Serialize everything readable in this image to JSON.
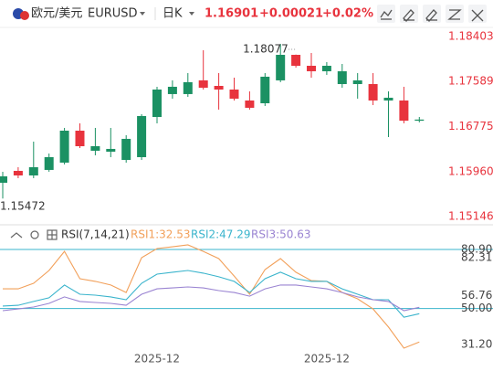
{
  "header": {
    "pair": "欧元/美元",
    "symbol": "EURUSD",
    "period": "日K",
    "price": "1.16901",
    "change": "+0.00021",
    "percent": "+0.02%"
  },
  "chart_data": [
    {
      "type": "candlestick",
      "open": [
        1.15758,
        1.15973,
        1.1589,
        1.1599,
        1.16122,
        1.167,
        1.16337,
        1.1632,
        1.16171,
        1.16221,
        1.16948,
        1.17362,
        1.17362,
        1.1761,
        1.1751,
        1.17444,
        1.17246,
        1.17196,
        1.1761,
        1.18072,
        1.17874,
        1.17775,
        1.17543,
        1.17543,
        1.17543,
        1.17246,
        1.17246,
        1.1688
      ],
      "high": [
        1.15957,
        1.16039,
        1.16502,
        1.16287,
        1.1675,
        1.16833,
        1.1675,
        1.1675,
        1.16618,
        1.16998,
        1.17494,
        1.1761,
        1.17742,
        1.18155,
        1.17742,
        1.17659,
        1.17411,
        1.17742,
        1.18271,
        1.18077,
        1.18105,
        1.1794,
        1.17907,
        1.17742,
        1.17742,
        1.17411,
        1.17494,
        1.16948
      ],
      "low": [
        1.15472,
        1.15841,
        1.15841,
        1.15957,
        1.16089,
        1.16386,
        1.16254,
        1.16221,
        1.16122,
        1.16171,
        1.16833,
        1.17279,
        1.17312,
        1.17444,
        1.17081,
        1.17246,
        1.17081,
        1.17147,
        1.17577,
        1.17841,
        1.17659,
        1.17709,
        1.17477,
        1.17279,
        1.17163,
        1.16585,
        1.16833,
        1.1685
      ],
      "close": [
        1.15874,
        1.1589,
        1.16039,
        1.16221,
        1.167,
        1.16419,
        1.16419,
        1.1637,
        1.16552,
        1.16965,
        1.17444,
        1.17494,
        1.17577,
        1.17477,
        1.17444,
        1.17279,
        1.17114,
        1.17676,
        1.18072,
        1.17874,
        1.17775,
        1.17874,
        1.17775,
        1.1761,
        1.17246,
        1.17296,
        1.1688,
        1.16901
      ],
      "up_color": "#1b9163",
      "down_color": "#e8333d",
      "ylim": [
        1.15014,
        1.18568
      ],
      "yticks": [
        1.18403,
        1.17589,
        1.16775,
        {
          "value": 1.1596,
          "label": "1.15960"
        },
        1.15146
      ]
    },
    {
      "type": "line",
      "title": "RSI(7,14,21)",
      "categories": [
        null,
        null,
        null,
        null,
        null,
        null,
        null,
        null,
        null,
        null,
        "2025-12",
        null,
        null,
        null,
        null,
        null,
        null,
        null,
        null,
        null,
        null,
        "2025-12",
        null,
        null,
        null,
        null,
        null,
        null
      ],
      "series": [
        {
          "name": "RSI1:32.53",
          "color": "#f2a05a",
          "values": [
            60.3,
            60.3,
            63.2,
            69.9,
            79.9,
            65.6,
            64.2,
            62.3,
            58.4,
            76.6,
            81.4,
            82.3,
            83.3,
            79.9,
            76.1,
            67.0,
            57.5,
            70.4,
            76.1,
            69.0,
            64.6,
            64.2,
            58.4,
            55.1,
            49.8,
            40.3,
            29.3,
            32.53
          ]
        },
        {
          "name": "RSI2:47.29",
          "color": "#3ab4cc",
          "values": [
            51.3,
            51.7,
            53.7,
            55.6,
            62.3,
            57.5,
            57.0,
            56.1,
            54.6,
            63.2,
            68.0,
            69.0,
            69.9,
            68.5,
            66.6,
            64.2,
            58.4,
            65.6,
            69.0,
            65.6,
            64.2,
            64.2,
            60.3,
            57.5,
            54.6,
            54.6,
            45.5,
            47.29
          ]
        },
        {
          "name": "RSI3:50.63",
          "color": "#9a84d2",
          "values": [
            48.9,
            49.8,
            50.8,
            52.7,
            56.1,
            53.7,
            53.2,
            52.7,
            51.7,
            57.5,
            60.3,
            60.8,
            61.3,
            60.8,
            59.4,
            58.4,
            56.5,
            60.3,
            62.3,
            62.3,
            61.3,
            60.3,
            58.4,
            56.1,
            54.6,
            53.7,
            48.9,
            50.63
          ]
        }
      ],
      "guide_lines": [
        80.9,
        50
      ],
      "guide_color": "#3ab4cc",
      "ylim": [
        20.2,
        86.16
      ],
      "yticks": [
        {
          "value": 80.9,
          "label": "80.90"
        },
        82.31,
        56.76,
        {
          "value": 50,
          "label": "50.00"
        },
        {
          "value": 31.2,
          "label": "31.20"
        }
      ]
    }
  ]
}
